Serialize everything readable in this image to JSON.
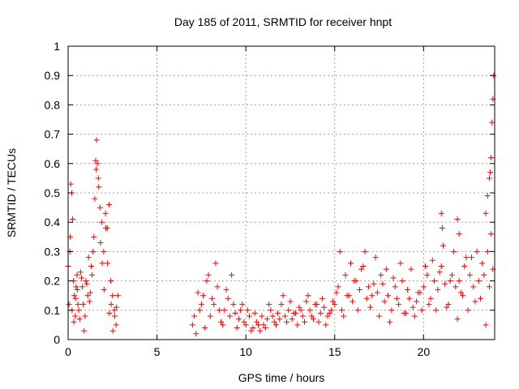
{
  "chart_data": {
    "type": "scatter",
    "title": "Day 185 of 2011, SRMTID for receiver hnpt",
    "xlabel": "GPS time / hours",
    "ylabel": "SRMTID / TECUs",
    "xlim": [
      0,
      24
    ],
    "ylim": [
      0,
      1
    ],
    "xticks": [
      0,
      5,
      10,
      15,
      20
    ],
    "xtick_labels": [
      "0",
      "5",
      "10",
      "15",
      "20"
    ],
    "yticks": [
      0,
      0.1,
      0.2,
      0.3,
      0.4,
      0.5,
      0.6,
      0.7,
      0.8,
      0.9,
      1
    ],
    "ytick_labels": [
      "0",
      "0.1",
      "0.2",
      "0.3",
      "0.4",
      "0.5",
      "0.6",
      "0.7",
      "0.8",
      "0.9",
      "1"
    ],
    "grid": true,
    "marker": "+",
    "color": "#ff0000",
    "series": [
      {
        "name": "SRMTID",
        "x": [
          0.0,
          0.1,
          0.15,
          0.2,
          0.25,
          0.3,
          0.35,
          0.4,
          0.45,
          0.5,
          0.55,
          0.6,
          0.7,
          0.8,
          0.9,
          1.0,
          1.1,
          1.2,
          1.3,
          1.4,
          1.5,
          1.55,
          1.6,
          1.65,
          1.7,
          1.8,
          1.9,
          2.0,
          2.1,
          2.2,
          2.3,
          2.4,
          2.5,
          2.6,
          2.7,
          2.8,
          0.05,
          0.12,
          0.22,
          0.32,
          0.42,
          0.52,
          0.65,
          0.75,
          0.85,
          0.95,
          1.05,
          1.15,
          1.25,
          1.35,
          1.45,
          1.58,
          1.72,
          1.82,
          1.92,
          2.02,
          2.12,
          2.22,
          2.32,
          2.42,
          2.52,
          2.62,
          2.72,
          7.0,
          7.2,
          7.4,
          7.6,
          7.8,
          8.0,
          8.2,
          8.4,
          8.6,
          8.8,
          9.0,
          9.2,
          9.4,
          9.6,
          9.8,
          10.0,
          10.2,
          10.4,
          10.6,
          10.8,
          11.0,
          11.2,
          11.4,
          11.6,
          11.8,
          12.0,
          12.2,
          12.4,
          12.6,
          12.8,
          13.0,
          13.2,
          13.4,
          13.6,
          13.8,
          14.0,
          14.2,
          14.4,
          14.6,
          14.8,
          7.1,
          7.3,
          7.5,
          7.7,
          7.9,
          8.1,
          8.3,
          8.5,
          8.7,
          8.9,
          9.1,
          9.3,
          9.5,
          9.7,
          9.9,
          10.1,
          10.3,
          10.5,
          10.7,
          10.9,
          11.1,
          11.3,
          11.5,
          11.7,
          11.9,
          12.1,
          12.3,
          12.5,
          12.7,
          12.9,
          13.1,
          13.3,
          13.5,
          13.7,
          13.9,
          14.1,
          14.3,
          14.5,
          14.7,
          14.9,
          15.0,
          15.2,
          15.4,
          15.6,
          15.8,
          16.0,
          16.2,
          16.4,
          16.6,
          16.8,
          17.0,
          17.2,
          17.4,
          17.6,
          17.8,
          18.0,
          18.2,
          18.4,
          18.6,
          18.8,
          19.0,
          19.2,
          19.4,
          19.6,
          19.8,
          20.0,
          20.2,
          20.4,
          20.6,
          20.8,
          21.0,
          21.2,
          21.4,
          21.6,
          21.8,
          22.0,
          22.2,
          22.4,
          22.6,
          22.8,
          23.0,
          23.2,
          23.4,
          23.6,
          23.8,
          15.1,
          15.3,
          15.5,
          15.7,
          15.9,
          16.1,
          16.3,
          16.5,
          16.7,
          16.9,
          17.1,
          17.3,
          17.5,
          17.7,
          17.9,
          18.1,
          18.3,
          18.5,
          18.7,
          18.9,
          19.1,
          19.3,
          19.5,
          19.7,
          19.9,
          20.1,
          20.3,
          20.5,
          20.7,
          20.9,
          21.1,
          21.3,
          21.5,
          21.7,
          21.9,
          22.1,
          22.3,
          22.5,
          22.7,
          22.9,
          23.1,
          23.3,
          23.5,
          23.7,
          23.9,
          21.0,
          21.05,
          21.9,
          22.0,
          23.5,
          23.6,
          23.7,
          23.75,
          23.8,
          23.85,
          23.9,
          23.95
        ],
        "y": [
          0.25,
          0.3,
          0.53,
          0.5,
          0.41,
          0.2,
          0.15,
          0.08,
          0.18,
          0.22,
          0.12,
          0.1,
          0.23,
          0.18,
          0.03,
          0.2,
          0.15,
          0.13,
          0.25,
          0.3,
          0.48,
          0.61,
          0.68,
          0.6,
          0.55,
          0.45,
          0.4,
          0.3,
          0.43,
          0.38,
          0.46,
          0.2,
          0.15,
          0.1,
          0.05,
          0.15,
          0.12,
          0.35,
          0.1,
          0.06,
          0.14,
          0.17,
          0.07,
          0.21,
          0.12,
          0.08,
          0.19,
          0.28,
          0.16,
          0.22,
          0.35,
          0.58,
          0.52,
          0.33,
          0.26,
          0.17,
          0.38,
          0.26,
          0.09,
          0.12,
          0.03,
          0.08,
          0.11,
          0.05,
          0.02,
          0.1,
          0.15,
          0.2,
          0.08,
          0.12,
          0.18,
          0.06,
          0.1,
          0.14,
          0.22,
          0.09,
          0.07,
          0.12,
          0.05,
          0.08,
          0.04,
          0.06,
          0.03,
          0.05,
          0.07,
          0.1,
          0.06,
          0.09,
          0.12,
          0.08,
          0.1,
          0.07,
          0.09,
          0.11,
          0.08,
          0.13,
          0.1,
          0.07,
          0.12,
          0.09,
          0.11,
          0.08,
          0.1,
          0.08,
          0.16,
          0.12,
          0.04,
          0.22,
          0.14,
          0.26,
          0.1,
          0.05,
          0.17,
          0.08,
          0.12,
          0.04,
          0.1,
          0.06,
          0.1,
          0.03,
          0.09,
          0.05,
          0.08,
          0.04,
          0.12,
          0.08,
          0.05,
          0.07,
          0.15,
          0.06,
          0.13,
          0.09,
          0.05,
          0.1,
          0.06,
          0.15,
          0.08,
          0.12,
          0.06,
          0.14,
          0.05,
          0.09,
          0.13,
          0.12,
          0.18,
          0.1,
          0.22,
          0.15,
          0.13,
          0.2,
          0.17,
          0.25,
          0.14,
          0.11,
          0.19,
          0.16,
          0.22,
          0.13,
          0.15,
          0.1,
          0.18,
          0.12,
          0.2,
          0.09,
          0.14,
          0.11,
          0.13,
          0.16,
          0.18,
          0.22,
          0.14,
          0.2,
          0.17,
          0.25,
          0.19,
          0.12,
          0.22,
          0.18,
          0.2,
          0.15,
          0.28,
          0.22,
          0.18,
          0.3,
          0.14,
          0.22,
          0.3,
          0.36,
          0.16,
          0.3,
          0.08,
          0.15,
          0.26,
          0.2,
          0.1,
          0.24,
          0.3,
          0.18,
          0.15,
          0.28,
          0.08,
          0.19,
          0.24,
          0.06,
          0.21,
          0.14,
          0.26,
          0.09,
          0.17,
          0.24,
          0.08,
          0.16,
          0.1,
          0.25,
          0.12,
          0.27,
          0.1,
          0.23,
          0.32,
          0.11,
          0.2,
          0.3,
          0.07,
          0.16,
          0.25,
          0.1,
          0.28,
          0.13,
          0.2,
          0.26,
          0.05,
          0.18,
          0.24,
          0.43,
          0.38,
          0.41,
          0.36,
          0.43,
          0.49,
          0.55,
          0.57,
          0.62,
          0.74,
          0.82,
          0.9
        ]
      }
    ]
  }
}
